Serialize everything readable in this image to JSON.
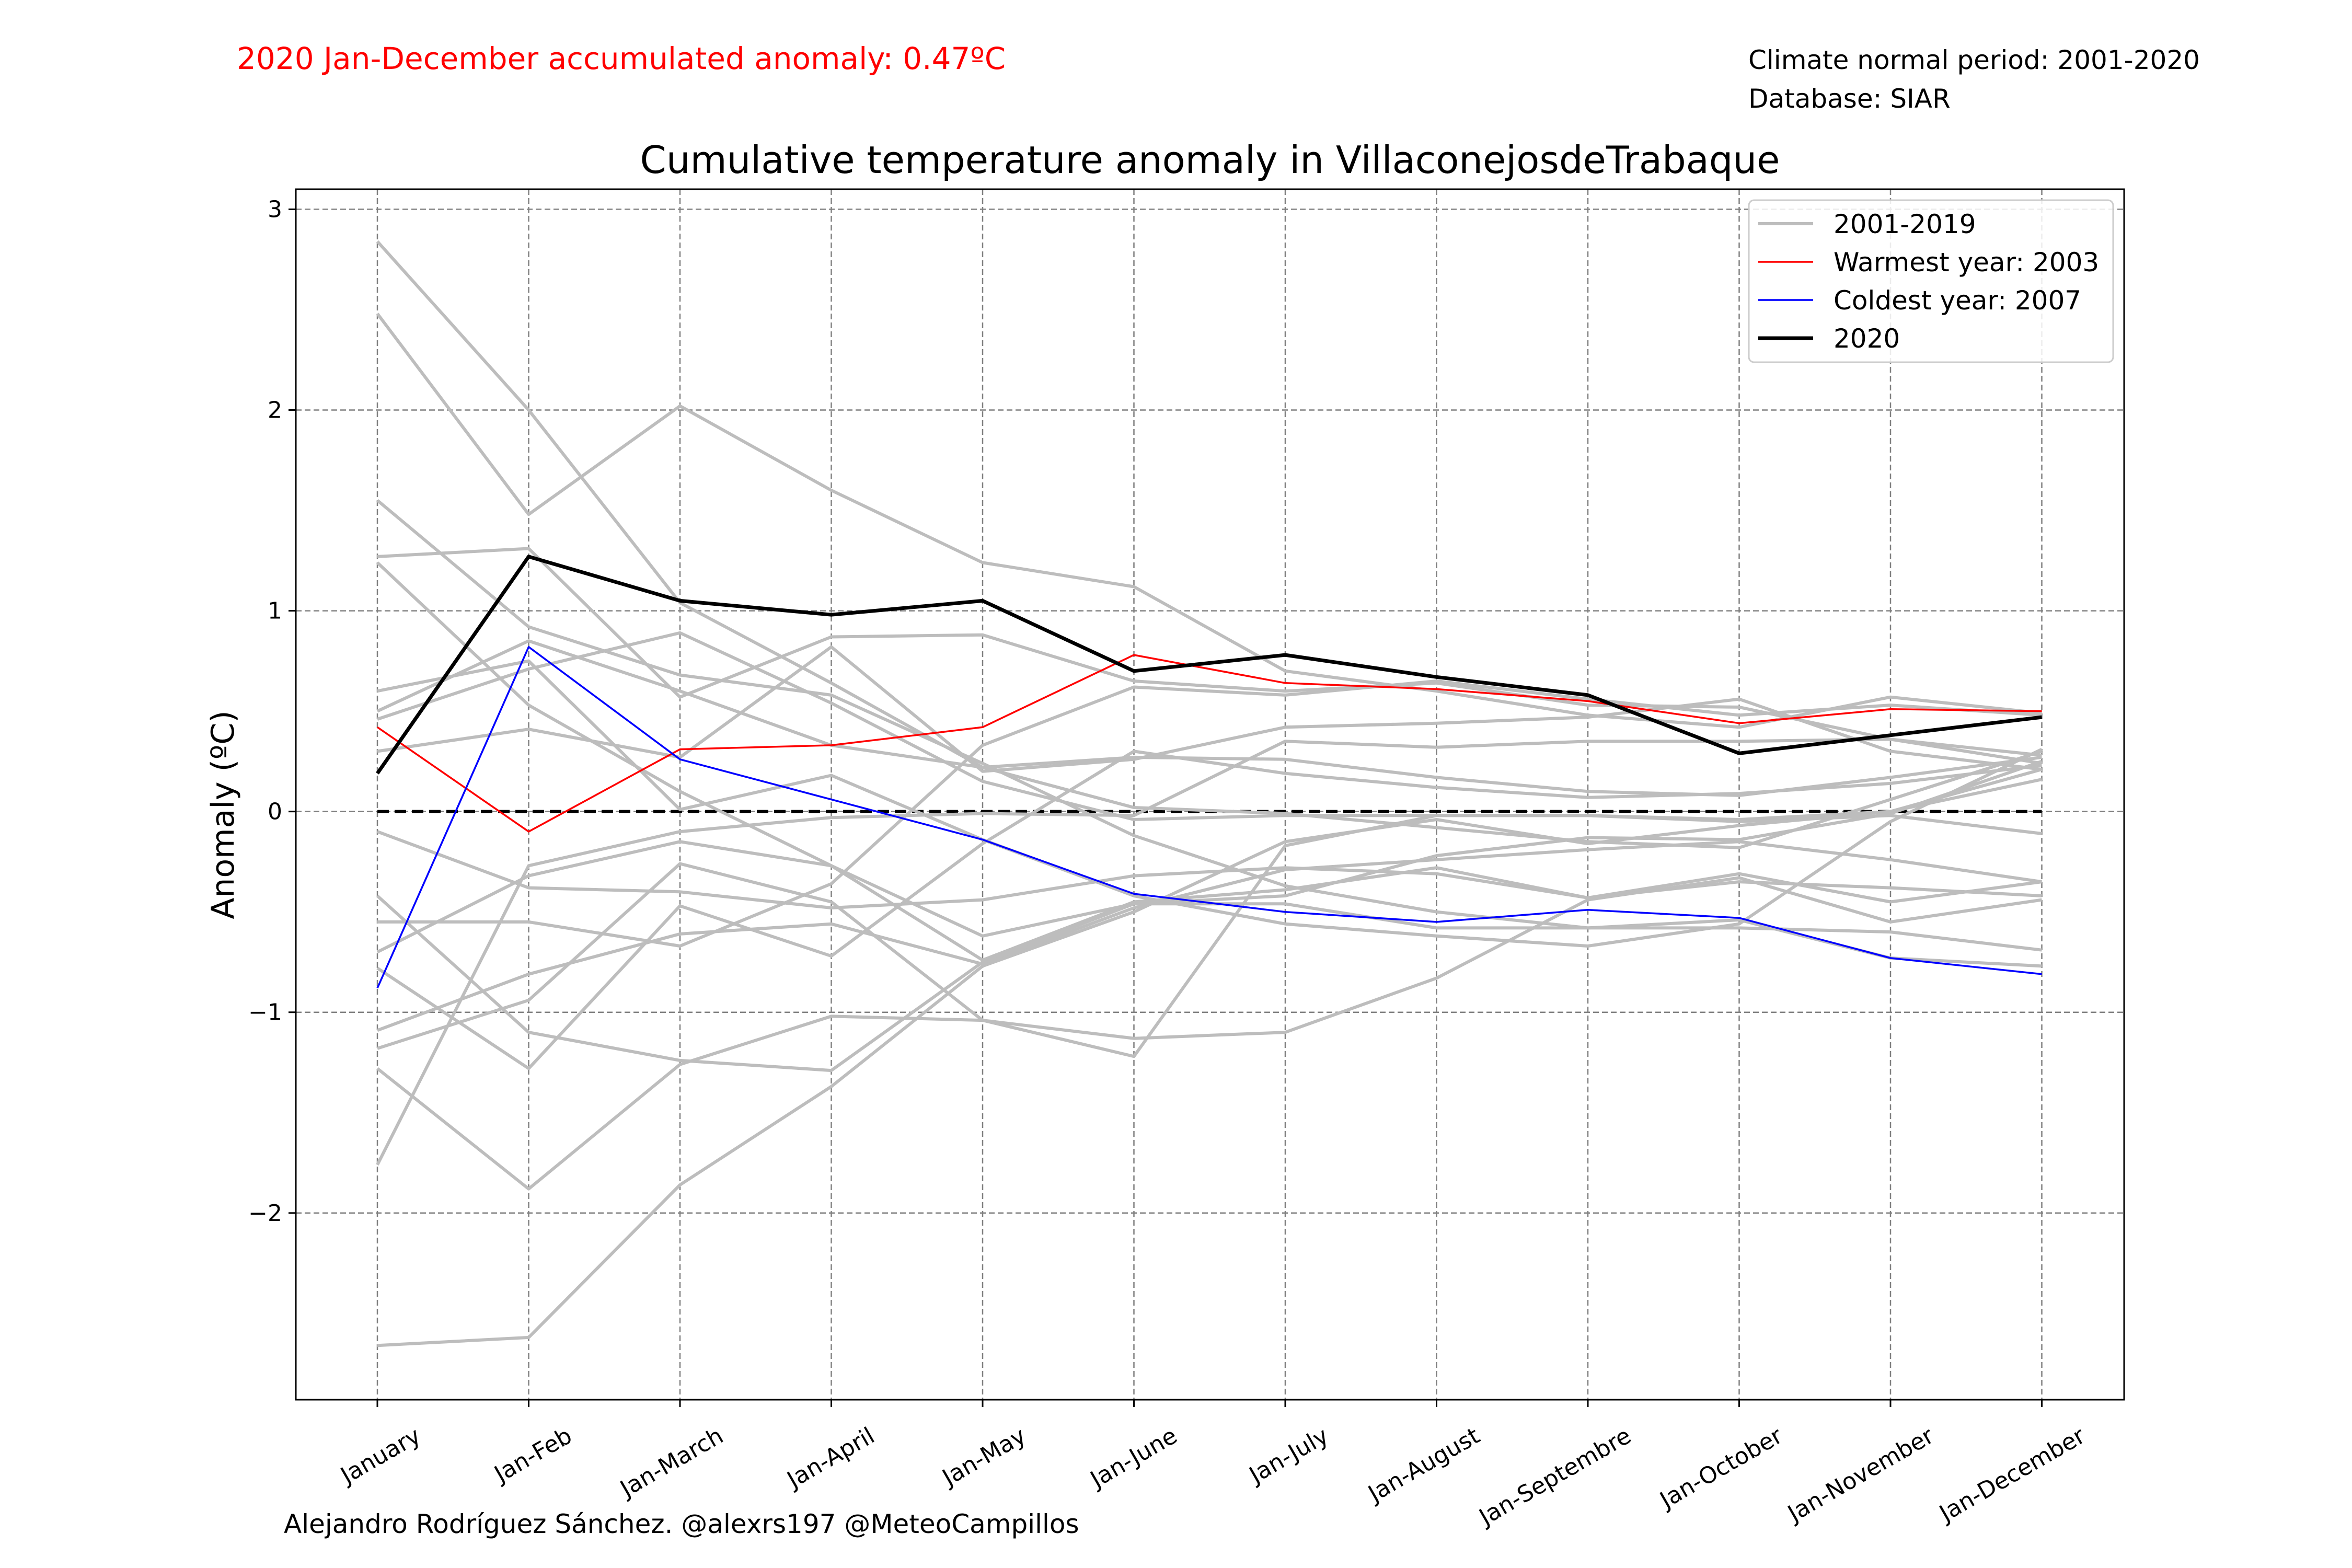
{
  "header": {
    "annotation": "2020 Jan-December accumulated anomaly: 0.47ºC",
    "normal_period": "Climate normal period: 2001-2020",
    "database": "Database: SIAR"
  },
  "footer": {
    "credit": "Alejandro Rodríguez Sánchez. @alexrs197 @MeteoCampillos"
  },
  "colors": {
    "annotation": "#ff0000",
    "background_years": "#bdbdbd",
    "warmest": "#ff0000",
    "coldest": "#0000ff",
    "current": "#000000",
    "zero_line": "#000000",
    "grid": "#808080"
  },
  "chart_data": {
    "type": "line",
    "title": "Cumulative temperature anomaly in VillaconejosdeTrabaque",
    "xlabel": "",
    "ylabel": "Anomaly (ºC)",
    "categories": [
      "January",
      "Jan-Feb",
      "Jan-March",
      "Jan-April",
      "Jan-May",
      "Jan-June",
      "Jan-July",
      "Jan-August",
      "Jan-Septembre",
      "Jan-October",
      "Jan-November",
      "Jan-December"
    ],
    "ylim": [
      -2.93,
      3.1
    ],
    "yticks": [
      {
        "value": 3,
        "label": "3"
      },
      {
        "value": 2,
        "label": "2"
      },
      {
        "value": 1,
        "label": "1"
      },
      {
        "value": 0,
        "label": "0"
      },
      {
        "value": -1,
        "label": "−1"
      },
      {
        "value": -2,
        "label": "−2"
      }
    ],
    "grid": true,
    "legend_position": "top-right",
    "legend": [
      {
        "label": "2001-2019",
        "style": "background"
      },
      {
        "label": "Warmest year: 2003",
        "style": "warmest"
      },
      {
        "label": "Coldest year: 2007",
        "style": "coldest"
      },
      {
        "label": "2020",
        "style": "current"
      }
    ],
    "zero_line": true,
    "background_series": [
      {
        "values": [
          2.84,
          2.0,
          1.04,
          0.64,
          0.22,
          0.02,
          -0.01,
          -0.08,
          -0.15,
          -0.18,
          0.06,
          0.3
        ]
      },
      {
        "values": [
          2.48,
          1.48,
          2.02,
          1.6,
          1.24,
          1.12,
          0.7,
          0.6,
          0.48,
          0.42,
          0.57,
          0.49
        ]
      },
      {
        "values": [
          1.55,
          0.92,
          0.68,
          0.58,
          0.24,
          -0.12,
          -0.37,
          -0.5,
          -0.58,
          -0.54,
          -0.73,
          -0.77
        ]
      },
      {
        "values": [
          1.27,
          1.31,
          0.57,
          0.87,
          0.88,
          0.65,
          0.6,
          0.64,
          0.53,
          0.52,
          0.36,
          0.28
        ]
      },
      {
        "values": [
          1.24,
          0.53,
          0.1,
          -0.27,
          -0.74,
          -0.45,
          -0.39,
          -0.28,
          -0.43,
          -0.31,
          -0.45,
          -0.35
        ]
      },
      {
        "values": [
          0.46,
          0.71,
          0.89,
          0.54,
          0.15,
          -0.04,
          -0.02,
          -0.02,
          -0.02,
          -0.05,
          -0.02,
          -0.11
        ]
      },
      {
        "values": [
          0.3,
          0.41,
          0.27,
          0.82,
          0.2,
          0.26,
          0.42,
          0.44,
          0.47,
          0.56,
          0.3,
          0.21
        ]
      },
      {
        "values": [
          -0.1,
          -0.38,
          -0.4,
          -0.48,
          -0.44,
          -0.32,
          -0.28,
          -0.31,
          -0.43,
          -0.35,
          -0.38,
          -0.42
        ]
      },
      {
        "values": [
          -0.42,
          -1.1,
          -1.24,
          -1.29,
          -0.75,
          -0.46,
          -0.46,
          -0.58,
          -0.58,
          -0.58,
          -0.6,
          -0.69
        ]
      },
      {
        "values": [
          -0.78,
          -1.28,
          -0.47,
          -0.72,
          -0.16,
          0.3,
          0.19,
          0.12,
          0.07,
          0.09,
          0.14,
          0.23
        ]
      },
      {
        "values": [
          -1.09,
          -0.81,
          -0.61,
          -0.56,
          -0.76,
          -0.48,
          -0.29,
          -0.24,
          -0.19,
          -0.15,
          -0.24,
          -0.35
        ]
      },
      {
        "values": [
          -1.18,
          -0.94,
          -0.26,
          -0.45,
          -1.04,
          -1.22,
          -0.17,
          -0.02,
          -0.02,
          -0.04,
          0.0,
          0.21
        ]
      },
      {
        "values": [
          -1.28,
          -1.88,
          -1.26,
          -1.02,
          -1.04,
          -1.13,
          -1.1,
          -0.83,
          -0.44,
          -0.33,
          -0.55,
          -0.44
        ]
      },
      {
        "values": [
          -1.76,
          -0.27,
          -0.1,
          -0.03,
          -0.01,
          -0.02,
          0.35,
          0.32,
          0.35,
          0.35,
          0.36,
          0.24
        ]
      },
      {
        "values": [
          -2.66,
          -2.62,
          -1.86,
          -1.37,
          -0.77,
          -0.5,
          -0.15,
          -0.04,
          -0.16,
          -0.07,
          0.0,
          0.16
        ]
      },
      {
        "values": [
          0.6,
          0.75,
          0.01,
          0.18,
          -0.14,
          -0.42,
          -0.56,
          -0.62,
          -0.67,
          -0.56,
          -0.05,
          0.31
        ]
      },
      {
        "values": [
          0.5,
          0.85,
          0.6,
          0.33,
          0.22,
          0.27,
          0.26,
          0.17,
          0.1,
          0.08,
          0.17,
          0.27
        ]
      },
      {
        "values": [
          -0.55,
          -0.55,
          -0.67,
          -0.36,
          0.33,
          0.62,
          0.58,
          0.65,
          0.56,
          0.48,
          0.53,
          0.48
        ]
      },
      {
        "values": [
          -0.7,
          -0.32,
          -0.15,
          -0.27,
          -0.62,
          -0.46,
          -0.42,
          -0.22,
          -0.13,
          -0.14,
          -0.01,
          0.25
        ]
      }
    ],
    "series": [
      {
        "name": "Warmest year: 2003",
        "style": "warmest",
        "values": [
          0.42,
          -0.1,
          0.31,
          0.33,
          0.42,
          0.78,
          0.64,
          0.61,
          0.55,
          0.44,
          0.51,
          0.5
        ]
      },
      {
        "name": "Coldest year: 2007",
        "style": "coldest",
        "values": [
          -0.88,
          0.82,
          0.26,
          0.06,
          -0.14,
          -0.41,
          -0.5,
          -0.55,
          -0.49,
          -0.53,
          -0.73,
          -0.81
        ]
      },
      {
        "name": "2020",
        "style": "current",
        "values": [
          0.19,
          1.27,
          1.05,
          0.98,
          1.05,
          0.7,
          0.78,
          0.67,
          0.58,
          0.29,
          0.38,
          0.47
        ]
      }
    ]
  }
}
